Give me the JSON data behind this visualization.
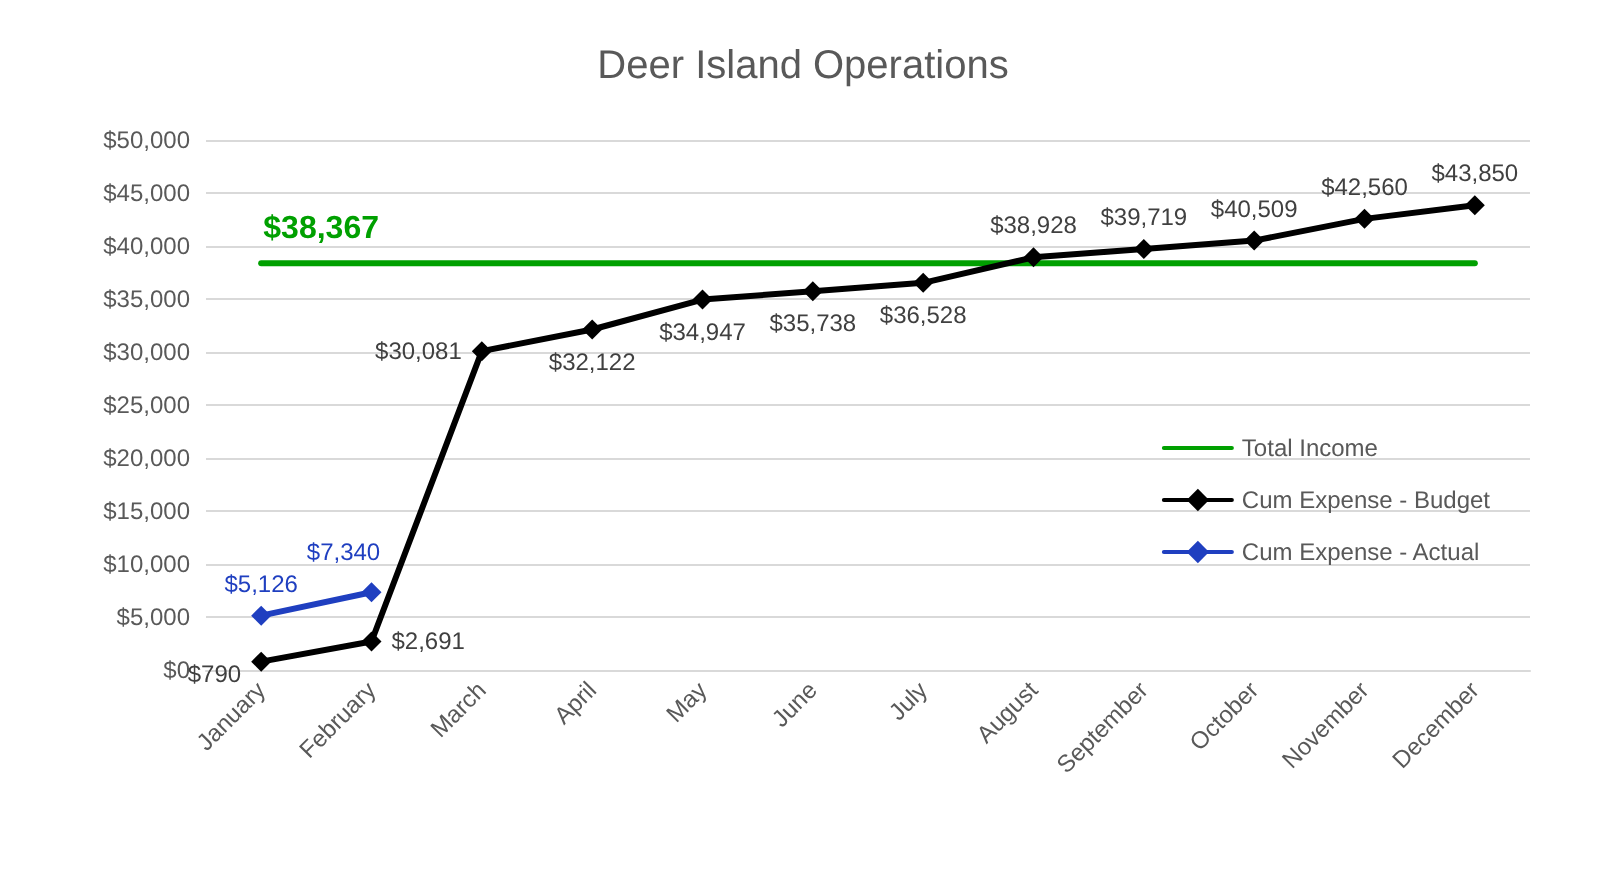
{
  "chart_data": {
    "type": "line",
    "title": "Deer Island Operations",
    "categories": [
      "January",
      "February",
      "March",
      "April",
      "May",
      "June",
      "July",
      "August",
      "September",
      "October",
      "November",
      "December"
    ],
    "series": [
      {
        "name": "Total Income",
        "color": "#00a000",
        "marker": "none",
        "values": [
          38367,
          38367,
          38367,
          38367,
          38367,
          38367,
          38367,
          38367,
          38367,
          38367,
          38367,
          38367
        ],
        "value_labels": [
          "$38,367",
          null,
          null,
          null,
          null,
          null,
          null,
          null,
          null,
          null,
          null,
          null
        ]
      },
      {
        "name": "Cum Expense - Budget",
        "color": "#000000",
        "marker": "diamond",
        "values": [
          790,
          2691,
          30081,
          32122,
          34947,
          35738,
          36528,
          38928,
          39719,
          40509,
          42560,
          43850
        ],
        "value_labels": [
          "$790",
          "$2,691",
          "$30,081",
          "$32,122",
          "$34,947",
          "$35,738",
          "$36,528",
          "$38,928",
          "$39,719",
          "$40,509",
          "$42,560",
          "$43,850"
        ]
      },
      {
        "name": "Cum Expense - Actual",
        "color": "#1f3fc0",
        "marker": "diamond",
        "values": [
          5126,
          7340,
          null,
          null,
          null,
          null,
          null,
          null,
          null,
          null,
          null,
          null
        ],
        "value_labels": [
          "$5,126",
          "$7,340",
          null,
          null,
          null,
          null,
          null,
          null,
          null,
          null,
          null,
          null
        ]
      }
    ],
    "ylim": [
      0,
      50000
    ],
    "yticks": [
      {
        "value": 0,
        "label": "$0"
      },
      {
        "value": 5000,
        "label": "$5,000"
      },
      {
        "value": 10000,
        "label": "$10,000"
      },
      {
        "value": 15000,
        "label": "$15,000"
      },
      {
        "value": 20000,
        "label": "$20,000"
      },
      {
        "value": 25000,
        "label": "$25,000"
      },
      {
        "value": 30000,
        "label": "$30,000"
      },
      {
        "value": 35000,
        "label": "$35,000"
      },
      {
        "value": 40000,
        "label": "$40,000"
      },
      {
        "value": 45000,
        "label": "$45,000"
      },
      {
        "value": 50000,
        "label": "$50,000"
      }
    ],
    "grid": "y",
    "legend": "right",
    "line_style": "solid"
  }
}
